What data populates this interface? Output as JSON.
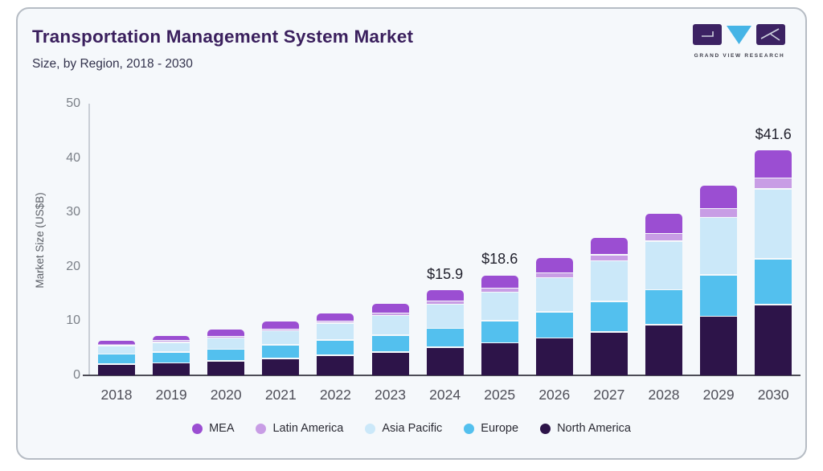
{
  "header": {
    "title": "Transportation Management System Market",
    "subtitle": "Size, by Region, 2018 - 2030",
    "logo_caption": "GRAND VIEW RESEARCH"
  },
  "chart_data": {
    "type": "bar",
    "stacked": true,
    "title": "Transportation Management System Market",
    "subtitle": "Size, by Region, 2018 - 2030",
    "ylabel": "Market Size (US$B)",
    "ylim": [
      0,
      50
    ],
    "yticks": [
      0,
      10,
      20,
      30,
      40,
      50
    ],
    "grid": false,
    "legend_position": "bottom",
    "categories": [
      "2018",
      "2019",
      "2020",
      "2021",
      "2022",
      "2023",
      "2024",
      "2025",
      "2026",
      "2027",
      "2028",
      "2029",
      "2030"
    ],
    "stack_order_bottom_to_top": [
      "North America",
      "Europe",
      "Asia Pacific",
      "Latin America",
      "MEA"
    ],
    "series": [
      {
        "name": "North America",
        "color": "#2d1449",
        "values": [
          2.2,
          2.4,
          2.8,
          3.2,
          3.8,
          4.4,
          5.3,
          6.1,
          7.0,
          8.1,
          9.4,
          11.0,
          13.1
        ]
      },
      {
        "name": "Europe",
        "color": "#53c0ee",
        "values": [
          1.8,
          2.0,
          2.1,
          2.5,
          2.8,
          3.1,
          3.5,
          4.1,
          4.8,
          5.6,
          6.5,
          7.6,
          8.5
        ]
      },
      {
        "name": "Asia Pacific",
        "color": "#cbe8f9",
        "values": [
          1.6,
          1.8,
          2.1,
          2.6,
          3.1,
          3.6,
          4.4,
          5.2,
          6.3,
          7.5,
          8.9,
          10.6,
          12.8
        ]
      },
      {
        "name": "Latin America",
        "color": "#c89de5",
        "values": [
          0.2,
          0.3,
          0.3,
          0.3,
          0.4,
          0.5,
          0.6,
          0.8,
          0.9,
          1.1,
          1.4,
          1.6,
          2.0
        ]
      },
      {
        "name": "MEA",
        "color": "#9b4ed2",
        "values": [
          0.8,
          1.0,
          1.3,
          1.5,
          1.5,
          1.8,
          2.1,
          2.4,
          2.8,
          3.2,
          3.7,
          4.4,
          5.2
        ]
      }
    ],
    "totals": [
      6.6,
      7.5,
      8.6,
      10.1,
      11.6,
      13.4,
      15.9,
      18.6,
      21.8,
      25.5,
      29.9,
      35.2,
      41.6
    ],
    "data_labels": {
      "2024": "$15.9",
      "2025": "$18.6",
      "2030": "$41.6"
    },
    "legend_order": [
      "MEA",
      "Latin America",
      "Asia Pacific",
      "Europe",
      "North America"
    ]
  },
  "colors": {
    "card_background": "#f5f8fb",
    "card_border": "#b6bcc4",
    "title_text": "#3a1f5d",
    "axis_line_left": "#c9ced6",
    "axis_line_bottom": "#4c4c56",
    "logo_purple": "#3c2263",
    "logo_blue": "#45b4e6"
  }
}
